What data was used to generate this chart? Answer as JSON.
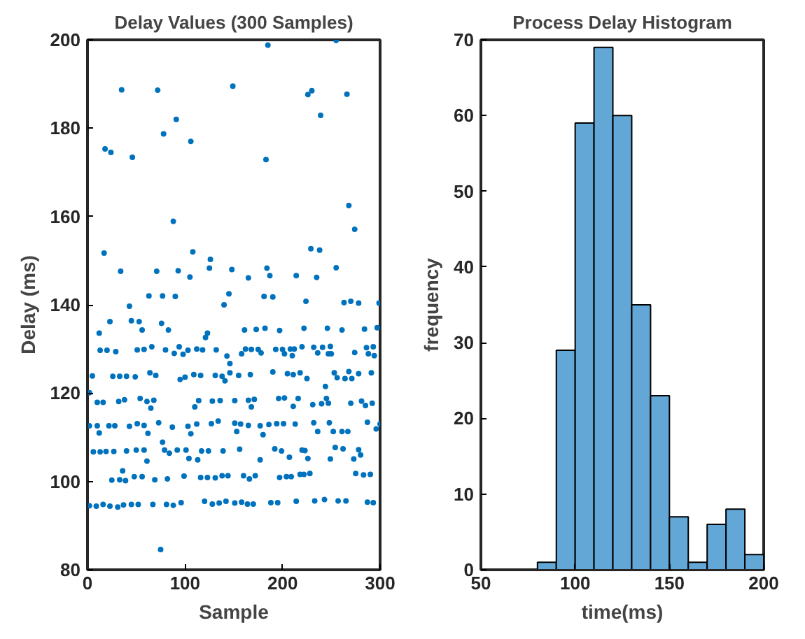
{
  "chart_data": [
    {
      "type": "scatter",
      "title": "Delay Values (300 Samples)",
      "xlabel": "Sample",
      "ylabel": "Delay (ms)",
      "color": "#0072bd",
      "marker": "circle",
      "grid": false,
      "xlim": [
        0,
        300
      ],
      "xticks": [
        0,
        100,
        200,
        300
      ],
      "ylim": [
        80,
        200
      ],
      "yticks": [
        80,
        100,
        120,
        140,
        160,
        180,
        200
      ],
      "x": [
        18,
        24,
        35,
        46,
        72,
        78,
        91,
        106,
        88,
        149,
        183,
        185,
        226,
        230,
        239,
        255,
        266,
        268,
        274,
        17,
        34,
        71,
        93,
        105,
        108,
        125,
        126,
        148,
        165,
        184,
        187,
        214,
        229,
        235,
        238,
        255,
        43,
        63,
        77,
        90,
        140,
        145,
        181,
        190,
        224,
        263,
        270,
        278,
        299,
        2,
        5,
        12,
        13,
        20,
        23,
        29,
        26,
        33,
        40,
        49,
        45,
        53,
        56,
        51,
        58,
        66,
        64,
        70,
        76,
        83,
        80,
        89,
        94,
        95,
        100,
        98,
        103,
        112,
        118,
        109,
        116,
        121,
        123,
        132,
        131,
        138,
        141,
        143,
        146,
        146,
        155,
        161,
        158,
        162,
        168,
        173,
        167,
        175,
        178,
        182,
        190,
        193,
        197,
        200,
        202,
        205,
        208,
        210,
        211,
        212,
        218,
        220,
        222,
        225,
        232,
        236,
        241,
        244,
        246,
        247,
        249,
        250,
        253,
        256,
        261,
        264,
        268,
        274,
        271,
        278,
        284,
        286,
        288,
        293,
        294,
        297,
        291,
        10,
        16,
        32,
        38,
        54,
        61,
        68,
        65,
        110,
        114,
        128,
        136,
        151,
        165,
        168,
        171,
        202,
        196,
        211,
        216,
        231,
        240,
        247,
        245,
        270,
        281,
        285,
        292,
        2,
        10,
        12,
        22,
        28,
        43,
        51,
        58,
        62,
        73,
        87,
        103,
        106,
        112,
        127,
        134,
        151,
        153,
        157,
        165,
        177,
        180,
        186,
        194,
        201,
        213,
        232,
        236,
        248,
        252,
        261,
        267,
        287,
        300,
        296,
        6,
        13,
        19,
        27,
        40,
        50,
        58,
        61,
        77,
        79,
        84,
        92,
        101,
        104,
        113,
        117,
        124,
        139,
        156,
        177,
        192,
        199,
        207,
        220,
        223,
        226,
        249,
        254,
        262,
        273,
        278,
        280,
        25,
        33,
        36,
        39,
        48,
        56,
        69,
        82,
        99,
        116,
        123,
        131,
        138,
        144,
        160,
        166,
        172,
        197,
        204,
        209,
        218,
        222,
        228,
        275,
        283,
        290,
        2,
        9,
        16,
        23,
        31,
        37,
        45,
        52,
        67,
        81,
        88,
        96,
        120,
        128,
        135,
        142,
        151,
        158,
        164,
        170,
        188,
        195,
        214,
        233,
        243,
        257,
        265,
        287,
        293,
        75
      ],
      "values": [
        175.3,
        174.5,
        188.7,
        173.4,
        188.6,
        178.7,
        182,
        177,
        158.9,
        189.5,
        172.9,
        198.8,
        187.6,
        188.5,
        182.9,
        199.9,
        187.7,
        162.5,
        157.1,
        151.7,
        147.6,
        147.6,
        147.7,
        146.3,
        152,
        148.3,
        150.3,
        148,
        146.1,
        148.3,
        146.6,
        146.6,
        152.7,
        146.2,
        152.4,
        148.4,
        139.7,
        142,
        142,
        141.9,
        140,
        142.5,
        141.9,
        141.8,
        140.8,
        140.5,
        140.8,
        140.4,
        140.4,
        120.1,
        123.9,
        133.6,
        129.7,
        129.7,
        136.2,
        129.4,
        123.8,
        123.8,
        123.8,
        123.7,
        136.4,
        136.2,
        134.3,
        129.8,
        129.9,
        130.5,
        124.6,
        124,
        135.8,
        134.3,
        129.8,
        129,
        130.5,
        123.1,
        123.6,
        128.8,
        129.7,
        130,
        129.8,
        124.2,
        124,
        132.6,
        133.6,
        129.8,
        124,
        123.8,
        122.8,
        128.4,
        126.7,
        124.6,
        124,
        134.3,
        128.9,
        130,
        129.9,
        134.4,
        124.2,
        129.9,
        129.1,
        134.7,
        124.8,
        129.9,
        134.2,
        129.9,
        128.9,
        124.4,
        130,
        128.5,
        124.2,
        130,
        124.6,
        130.5,
        134.7,
        123.3,
        130.4,
        129.1,
        130.4,
        121.5,
        134.7,
        128.9,
        130.6,
        128.9,
        124.6,
        123.5,
        134.3,
        123.3,
        124.9,
        129.2,
        123.3,
        124.4,
        134.5,
        130.3,
        128.9,
        130.5,
        128.5,
        134.8,
        124.6,
        117.9,
        117.9,
        118.1,
        118.5,
        118.8,
        118.1,
        118.4,
        116.6,
        116.9,
        118.3,
        118.2,
        118.3,
        118.3,
        118.4,
        116.9,
        118.6,
        118.9,
        118.8,
        117,
        118.8,
        117.4,
        117.6,
        117.7,
        118.8,
        117.7,
        118.2,
        117.2,
        117.7,
        112.6,
        112.6,
        111,
        112.6,
        112.6,
        112.5,
        113.1,
        112.7,
        110.9,
        113.3,
        112.3,
        112.5,
        110.8,
        113,
        113.1,
        113.7,
        113.2,
        111.3,
        113,
        112.7,
        112.6,
        110.6,
        112.9,
        113.1,
        113.1,
        113,
        113.3,
        111.3,
        113.3,
        111.3,
        111.3,
        111.3,
        113.4,
        113,
        111.9,
        106.7,
        106.7,
        106.8,
        106.8,
        106.9,
        107.1,
        107.1,
        104.6,
        108.9,
        107.1,
        106.4,
        107.1,
        107.1,
        105.2,
        104.9,
        106.9,
        106.9,
        106.9,
        107.3,
        104.9,
        107.4,
        106.9,
        105.5,
        107.1,
        107,
        105.2,
        105.1,
        107.7,
        107.4,
        105.1,
        107.2,
        106,
        100.3,
        100.4,
        102.4,
        100.2,
        101.1,
        101.1,
        100.4,
        100.6,
        101.2,
        100.9,
        100.9,
        100.8,
        101.3,
        101.3,
        101.3,
        100.6,
        101.3,
        100.9,
        101.1,
        101.1,
        101.6,
        101.6,
        101.8,
        101.8,
        101.5,
        101.6,
        94.5,
        94.4,
        94.8,
        94.4,
        94.2,
        94.7,
        94.8,
        94.8,
        94.8,
        94.8,
        94.6,
        95.2,
        95.5,
        94.9,
        95.1,
        95.5,
        95.1,
        95.3,
        94.9,
        94.9,
        95.2,
        95.2,
        95.5,
        95.6,
        95.9,
        95.6,
        95.6,
        95.3,
        95.2,
        84.6
      ]
    },
    {
      "type": "histogram",
      "title": "Process Delay Histogram",
      "xlabel": "time(ms)",
      "ylabel": "frequency",
      "color": "#63a7d7",
      "grid": false,
      "xlim": [
        50,
        200
      ],
      "xticks": [
        50,
        100,
        150,
        200
      ],
      "ylim": [
        0,
        70
      ],
      "yticks": [
        0,
        10,
        20,
        30,
        40,
        50,
        60,
        70
      ],
      "bins": [
        80,
        90,
        100,
        110,
        120,
        130,
        140,
        150,
        160,
        170,
        180,
        190,
        200
      ],
      "values": [
        1,
        29,
        59,
        69,
        60,
        35,
        23,
        7,
        1,
        6,
        8,
        2
      ]
    }
  ]
}
